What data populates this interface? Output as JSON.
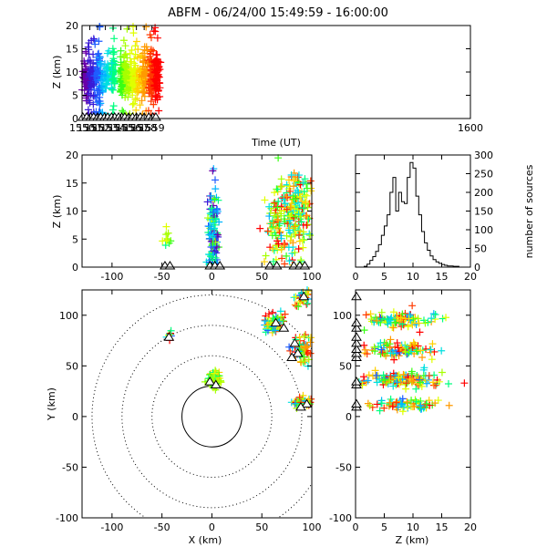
{
  "figure": {
    "title": "ABFM - 06/24/00 15:49:59 - 16:00:00"
  },
  "colors": {
    "palette": [
      "#6a00a8",
      "#3a1ad6",
      "#1f5cff",
      "#00b4ff",
      "#00e0e0",
      "#00ff7f",
      "#39ff14",
      "#a6ff00",
      "#e0ff00",
      "#ffd000",
      "#ff9a00",
      "#ff3a00",
      "#ff0000"
    ]
  },
  "chart_data": [
    {
      "id": "time-height",
      "type": "scatter",
      "xlabel": "Time (UT)",
      "ylabel": "Z (km)",
      "xlim": [
        1550,
        1600
      ],
      "ylim": [
        0,
        20
      ],
      "xticks": [
        "1550",
        "1551",
        "1552",
        "1553",
        "1554",
        "1555",
        "1556",
        "1557",
        "1558",
        "1559",
        "1600"
      ],
      "yticks": [
        "0",
        "5",
        "10",
        "15",
        "20"
      ],
      "marker": "+",
      "color_by": "time",
      "clusters": [
        {
          "t": 1550.6,
          "z": 8.5,
          "n": 70,
          "dt": 0.45,
          "dz": 2.5
        },
        {
          "t": 1551.5,
          "z": 8.8,
          "n": 80,
          "dt": 0.5,
          "dz": 2.6
        },
        {
          "t": 1552.3,
          "z": 8.0,
          "n": 60,
          "dt": 0.4,
          "dz": 2.8
        },
        {
          "t": 1553.2,
          "z": 9.0,
          "n": 35,
          "dt": 0.25,
          "dz": 2.0
        },
        {
          "t": 1554.0,
          "z": 9.5,
          "n": 55,
          "dt": 0.25,
          "dz": 2.2
        },
        {
          "t": 1555.2,
          "z": 9.0,
          "n": 65,
          "dt": 0.3,
          "dz": 2.2
        },
        {
          "t": 1555.9,
          "z": 9.2,
          "n": 70,
          "dt": 0.4,
          "dz": 2.2
        },
        {
          "t": 1556.8,
          "z": 8.8,
          "n": 70,
          "dt": 0.45,
          "dz": 2.6
        },
        {
          "t": 1557.8,
          "z": 9.2,
          "n": 80,
          "dt": 0.45,
          "dz": 2.6
        },
        {
          "t": 1558.9,
          "z": 9.0,
          "n": 90,
          "dt": 0.5,
          "dz": 2.8
        },
        {
          "t": 1559.6,
          "z": 9.6,
          "n": 70,
          "dt": 0.35,
          "dz": 3.0
        }
      ],
      "stations_t": [
        1550.1,
        1550.6,
        1551.1,
        1551.5,
        1552.0,
        1552.4,
        1552.9,
        1553.3,
        1553.8,
        1554.2,
        1554.7,
        1555.1,
        1555.5,
        1556.0,
        1556.5,
        1557.0,
        1557.5,
        1558.0,
        1558.6,
        1559.1,
        1559.5
      ]
    },
    {
      "id": "x-height",
      "type": "scatter",
      "xlabel": "",
      "ylabel": "Z (km)",
      "xlim": [
        -130,
        100
      ],
      "ylim": [
        0,
        20
      ],
      "xticks": [
        "-100",
        "-50",
        "0",
        "50",
        "100"
      ],
      "yticks": [
        "0",
        "5",
        "10",
        "15",
        "20"
      ],
      "marker": "+",
      "color_by": "time",
      "clusters": [
        {
          "x": -45,
          "z": 4.8,
          "n": 10,
          "dx": 2,
          "dz": 1.3
        },
        {
          "x": 1,
          "z": 6.5,
          "n": 120,
          "dx": 2.5,
          "dz": 4
        },
        {
          "x": 65,
          "z": 8.0,
          "n": 80,
          "dx": 6,
          "dz": 4
        },
        {
          "x": 85,
          "z": 9.5,
          "n": 170,
          "dx": 7,
          "dz": 4
        }
      ],
      "stations_x": [
        -47,
        -42,
        -2,
        3,
        8,
        58,
        65,
        82,
        88,
        93
      ]
    },
    {
      "id": "height-histogram",
      "type": "line",
      "xlabel": "",
      "ylabel": "number of sources",
      "xlim": [
        0,
        20
      ],
      "ylim": [
        0,
        300
      ],
      "xticks": [
        "0",
        "5",
        "10",
        "15",
        "20"
      ],
      "yticks": [
        "0",
        "50",
        "100",
        "150",
        "200",
        "250",
        "300"
      ],
      "x": [
        1.5,
        2.0,
        2.5,
        3.0,
        3.5,
        4.0,
        4.5,
        5.0,
        5.5,
        6.0,
        6.5,
        7.0,
        7.5,
        8.0,
        8.5,
        9.0,
        9.5,
        10.0,
        10.5,
        11.0,
        11.5,
        12.0,
        12.5,
        13.0,
        13.5,
        14.0,
        14.5,
        15.0,
        15.5,
        16.0,
        17.0,
        18.0
      ],
      "values": [
        2,
        8,
        18,
        28,
        42,
        60,
        85,
        110,
        140,
        200,
        240,
        150,
        200,
        175,
        170,
        240,
        280,
        265,
        190,
        140,
        95,
        65,
        45,
        30,
        20,
        14,
        10,
        7,
        5,
        3,
        2,
        0
      ]
    },
    {
      "id": "plan-view",
      "type": "scatter",
      "xlabel": "X (km)",
      "ylabel": "Y (km)",
      "xlim": [
        -130,
        100
      ],
      "ylim": [
        -100,
        125
      ],
      "xticks": [
        "-100",
        "-50",
        "0",
        "50",
        "100"
      ],
      "yticks": [
        "-100",
        "-50",
        "0",
        "50",
        "100"
      ],
      "range_rings_km": [
        30,
        60,
        90,
        120
      ],
      "marker": "+",
      "color_by": "time",
      "clusters": [
        {
          "x": 3,
          "y": 36,
          "n": 80,
          "dx": 3,
          "dy": 4
        },
        {
          "x": 62,
          "y": 92,
          "n": 70,
          "dx": 5,
          "dy": 5
        },
        {
          "x": 92,
          "y": 118,
          "n": 40,
          "dx": 4,
          "dy": 4
        },
        {
          "x": 90,
          "y": 66,
          "n": 70,
          "dx": 6,
          "dy": 6
        },
        {
          "x": 90,
          "y": 14,
          "n": 50,
          "dx": 5,
          "dy": 3
        },
        {
          "x": -42,
          "y": 80,
          "n": 8,
          "dx": 2,
          "dy": 2
        }
      ],
      "stations": [
        [
          -43,
          78
        ],
        [
          -2,
          34
        ],
        [
          4,
          31
        ],
        [
          64,
          92
        ],
        [
          72,
          87
        ],
        [
          92,
          118
        ],
        [
          86,
          62
        ],
        [
          80,
          58
        ],
        [
          95,
          12
        ],
        [
          89,
          9
        ],
        [
          83,
          72
        ]
      ]
    },
    {
      "id": "height-y",
      "type": "scatter",
      "xlabel": "Z (km)",
      "ylabel": "",
      "xlim": [
        0,
        20
      ],
      "ylim": [
        -100,
        125
      ],
      "xticks": [
        "0",
        "5",
        "10",
        "15",
        "20"
      ],
      "yticks": [
        "-100",
        "-50",
        "0",
        "50",
        "100"
      ],
      "marker": "+",
      "color_by": "time",
      "clusters": [
        {
          "z": 7.5,
          "y": 95,
          "n": 90,
          "dz": 3,
          "dy": 4
        },
        {
          "z": 8.0,
          "y": 66,
          "n": 90,
          "dz": 3.3,
          "dy": 4
        },
        {
          "z": 7.5,
          "y": 37,
          "n": 130,
          "dz": 3.8,
          "dy": 4
        },
        {
          "z": 9.0,
          "y": 12,
          "n": 70,
          "dz": 3.5,
          "dy": 2.5
        }
      ],
      "stations_y": [
        9,
        12,
        31,
        34,
        58,
        62,
        66,
        72,
        78,
        87,
        92,
        118
      ]
    }
  ]
}
